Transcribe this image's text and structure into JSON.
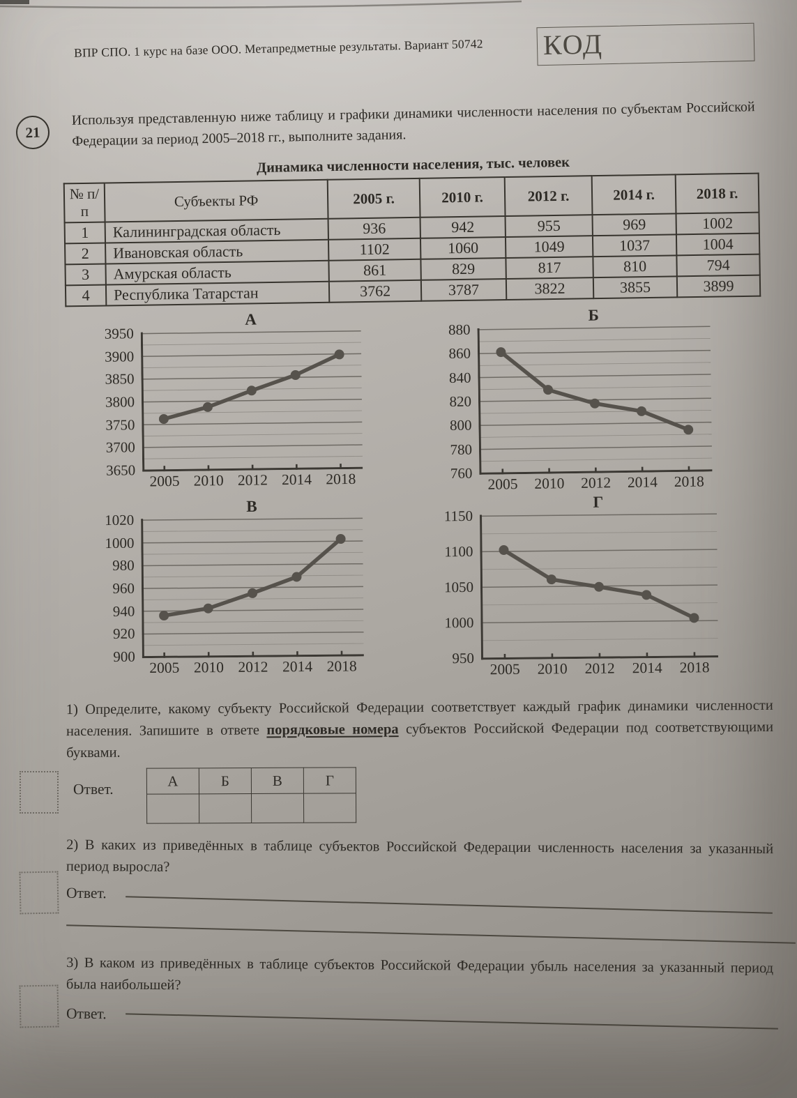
{
  "palette": {
    "paper": "#b3afaa",
    "ink": "#2d2a25",
    "chart_line": "#56524c",
    "grid_major": "#6e6a64",
    "grid_minor": "#918d87",
    "axis": "#3b3833"
  },
  "page": {
    "header": "ВПР СПО. 1 курс на базе ООО. Метапредметные результаты. Вариант 50742",
    "kod_label": "КОД",
    "task_number": "21",
    "intro": "Используя представленную ниже таблицу и графики динамики численности населения по субъектам Российской Федерации за период 2005–2018 гг., выполните задания."
  },
  "table": {
    "title": "Динамика численности населения, тыс. человек",
    "headers": [
      "№ п/п",
      "Субъекты РФ",
      "2005 г.",
      "2010 г.",
      "2012 г.",
      "2014 г.",
      "2018 г."
    ],
    "rows": [
      [
        "1",
        "Калининградская область",
        "936",
        "942",
        "955",
        "969",
        "1002"
      ],
      [
        "2",
        "Ивановская область",
        "1102",
        "1060",
        "1049",
        "1037",
        "1004"
      ],
      [
        "3",
        "Амурская область",
        "861",
        "829",
        "817",
        "810",
        "794"
      ],
      [
        "4",
        "Республика Татарстан",
        "3762",
        "3787",
        "3822",
        "3855",
        "3899"
      ]
    ]
  },
  "chart_data": [
    {
      "type": "line",
      "label": "А",
      "x": [
        "2005",
        "2010",
        "2012",
        "2014",
        "2018"
      ],
      "values": [
        3762,
        3787,
        3822,
        3855,
        3899
      ],
      "ylim": [
        3650,
        3950
      ],
      "ymajor": 50,
      "yminor": 25,
      "grid": true,
      "legend": "none"
    },
    {
      "type": "line",
      "label": "Б",
      "x": [
        "2005",
        "2010",
        "2012",
        "2014",
        "2018"
      ],
      "values": [
        861,
        829,
        817,
        810,
        794
      ],
      "ylim": [
        760,
        880
      ],
      "ymajor": 20,
      "yminor": 10,
      "grid": true,
      "legend": "none"
    },
    {
      "type": "line",
      "label": "В",
      "x": [
        "2005",
        "2010",
        "2012",
        "2014",
        "2018"
      ],
      "values": [
        936,
        942,
        955,
        969,
        1002
      ],
      "ylim": [
        900,
        1020
      ],
      "ymajor": 20,
      "yminor": 10,
      "grid": true,
      "legend": "none"
    },
    {
      "type": "line",
      "label": "Г",
      "x": [
        "2005",
        "2010",
        "2012",
        "2014",
        "2018"
      ],
      "values": [
        1102,
        1060,
        1049,
        1037,
        1004
      ],
      "ylim": [
        950,
        1150
      ],
      "ymajor": 50,
      "yminor": 25,
      "grid": true,
      "legend": "none"
    }
  ],
  "q1": {
    "text_before": "1) Определите, какому субъекту Российской Федерации соответствует каждый график динамики численности населения. Запишите в ответе ",
    "text_emph": "порядковые номера",
    "text_after": " субъектов Российской Федерации под соответствующими буквами.",
    "answer_label": "Ответ.",
    "answer_headers": [
      "А",
      "Б",
      "В",
      "Г"
    ]
  },
  "q2": {
    "text": "2) В каких из приведённых в таблице субъектов Российской Федерации численность населения за указанный период выросла?",
    "answer_label": "Ответ."
  },
  "q3": {
    "text": "3) В каком из приведённых в таблице субъектов Российской Федерации убыль населения за указанный период была наибольшей?",
    "answer_label": "Ответ."
  }
}
